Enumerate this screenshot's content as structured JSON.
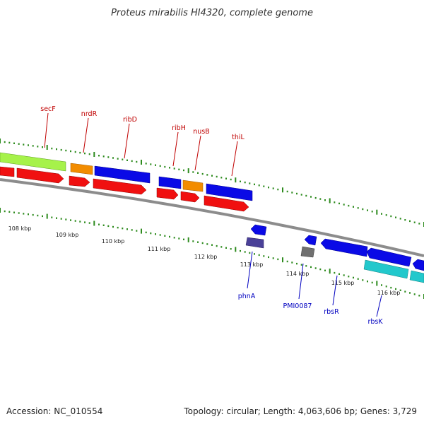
{
  "header": {
    "title": "Proteus mirabilis HI4320, complete genome"
  },
  "footer": {
    "accession": "Accession: NC_010554",
    "summary": "Topology: circular; Length: 4,063,606 bp; Genes: 3,729"
  },
  "colors": {
    "backbone": "#888888",
    "green": "#a6f24a",
    "orange": "#f28c00",
    "blue": "#0a0ae6",
    "red": "#f01010",
    "purple": "#4a4098",
    "gray": "#707070",
    "cyan": "#22c8cc",
    "dot": "#2e8b1e",
    "label_red": "#c00000",
    "label_blue": "#0000c0"
  },
  "scale": {
    "ticks": [
      "108 kbp",
      "109 kbp",
      "110 kbp",
      "111 kbp",
      "112 kbp",
      "113 kbp",
      "114 kbp",
      "115 kbp",
      "116 kbp"
    ]
  },
  "genes": {
    "forward_labels": [
      "secF",
      "nrdR",
      "ribD",
      "ribH",
      "nusB",
      "thiL"
    ],
    "reverse_labels": [
      "phnA",
      "PMI0087",
      "rbsR",
      "rbsK"
    ]
  }
}
